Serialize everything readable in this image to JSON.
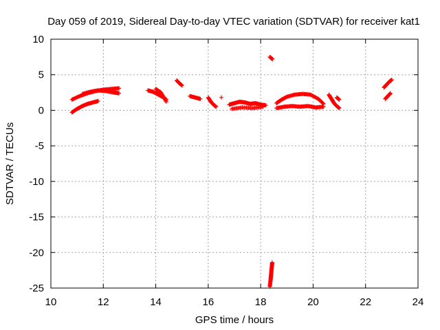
{
  "chart_data": {
    "type": "scatter",
    "title": "Day 059 of 2019, Sidereal Day-to-day VTEC variation (SDTVAR) for receiver kat1",
    "xlabel": "GPS time / hours",
    "ylabel": "SDTVAR / TECUs",
    "xlim": [
      10,
      24
    ],
    "ylim": [
      -25,
      10
    ],
    "xticks": [
      10,
      12,
      14,
      16,
      18,
      20,
      22,
      24
    ],
    "yticks": [
      -25,
      -20,
      -15,
      -10,
      -5,
      0,
      5,
      10
    ],
    "xtick_labels": [
      "10",
      "12",
      "14",
      "16",
      "18",
      "20",
      "22",
      "24"
    ],
    "ytick_labels": [
      "-25",
      "-20",
      "-15",
      "-10",
      "-5",
      "0",
      "5",
      "10"
    ],
    "grid": true,
    "marker": "+",
    "color": "#ff0000",
    "segments": [
      {
        "x": [
          10.8,
          11.1,
          11.4,
          11.7,
          12.0,
          12.3,
          12.6
        ],
        "y": [
          1.5,
          2.0,
          2.4,
          2.7,
          2.9,
          3.0,
          3.1
        ]
      },
      {
        "x": [
          11.2,
          11.5,
          11.8,
          12.1,
          12.4,
          12.6
        ],
        "y": [
          2.3,
          2.6,
          2.8,
          2.7,
          2.5,
          2.4
        ]
      },
      {
        "x": [
          10.8,
          11.0,
          11.2,
          11.4,
          11.6,
          11.8
        ],
        "y": [
          -0.3,
          0.2,
          0.6,
          0.9,
          1.1,
          1.3
        ]
      },
      {
        "x": [
          13.7,
          13.9,
          14.1,
          14.3,
          14.4
        ],
        "y": [
          2.8,
          2.6,
          2.2,
          1.8,
          1.5
        ]
      },
      {
        "x": [
          14.0,
          14.2,
          14.4
        ],
        "y": [
          3.0,
          2.5,
          1.2
        ]
      },
      {
        "x": [
          14.8,
          14.9,
          15.0
        ],
        "y": [
          4.2,
          3.8,
          3.5
        ]
      },
      {
        "x": [
          15.3,
          15.5,
          15.7
        ],
        "y": [
          2.0,
          1.8,
          1.6
        ]
      },
      {
        "x": [
          16.0,
          16.1,
          16.2,
          16.3
        ],
        "y": [
          1.8,
          1.2,
          0.8,
          0.5
        ]
      },
      {
        "x": [
          16.5
        ],
        "y": [
          1.8
        ]
      },
      {
        "x": [
          16.8,
          17.0,
          17.2,
          17.4,
          17.6,
          17.8,
          18.0,
          18.2
        ],
        "y": [
          0.8,
          1.0,
          1.2,
          1.1,
          0.9,
          1.0,
          0.8,
          0.7
        ]
      },
      {
        "x": [
          16.9,
          17.3,
          17.7,
          18.1
        ],
        "y": [
          0.2,
          0.4,
          0.3,
          0.5
        ]
      },
      {
        "x": [
          18.35,
          18.45
        ],
        "y": [
          7.5,
          7.2
        ]
      },
      {
        "x": [
          18.35,
          18.38,
          18.4,
          18.42,
          18.44
        ],
        "y": [
          -24.8,
          -23.8,
          -23.0,
          -22.2,
          -21.4
        ]
      },
      {
        "x": [
          18.6,
          18.8,
          19.0,
          19.3,
          19.6,
          19.9,
          20.2,
          20.4
        ],
        "y": [
          1.0,
          1.5,
          1.9,
          2.2,
          2.3,
          2.2,
          1.6,
          0.9
        ]
      },
      {
        "x": [
          18.6,
          18.9,
          19.2,
          19.5,
          19.8,
          20.1,
          20.4
        ],
        "y": [
          0.3,
          0.5,
          0.6,
          0.5,
          0.6,
          0.4,
          0.5
        ]
      },
      {
        "x": [
          20.6,
          20.7,
          20.8,
          20.9,
          21.0
        ],
        "y": [
          2.2,
          1.6,
          1.0,
          0.6,
          0.3
        ]
      },
      {
        "x": [
          20.9,
          21.0
        ],
        "y": [
          1.8,
          1.5
        ]
      },
      {
        "x": [
          22.7,
          22.8,
          22.9,
          23.0
        ],
        "y": [
          3.2,
          3.6,
          4.0,
          4.3
        ]
      },
      {
        "x": [
          22.75,
          22.85,
          22.95
        ],
        "y": [
          1.6,
          2.0,
          2.4
        ]
      }
    ]
  }
}
